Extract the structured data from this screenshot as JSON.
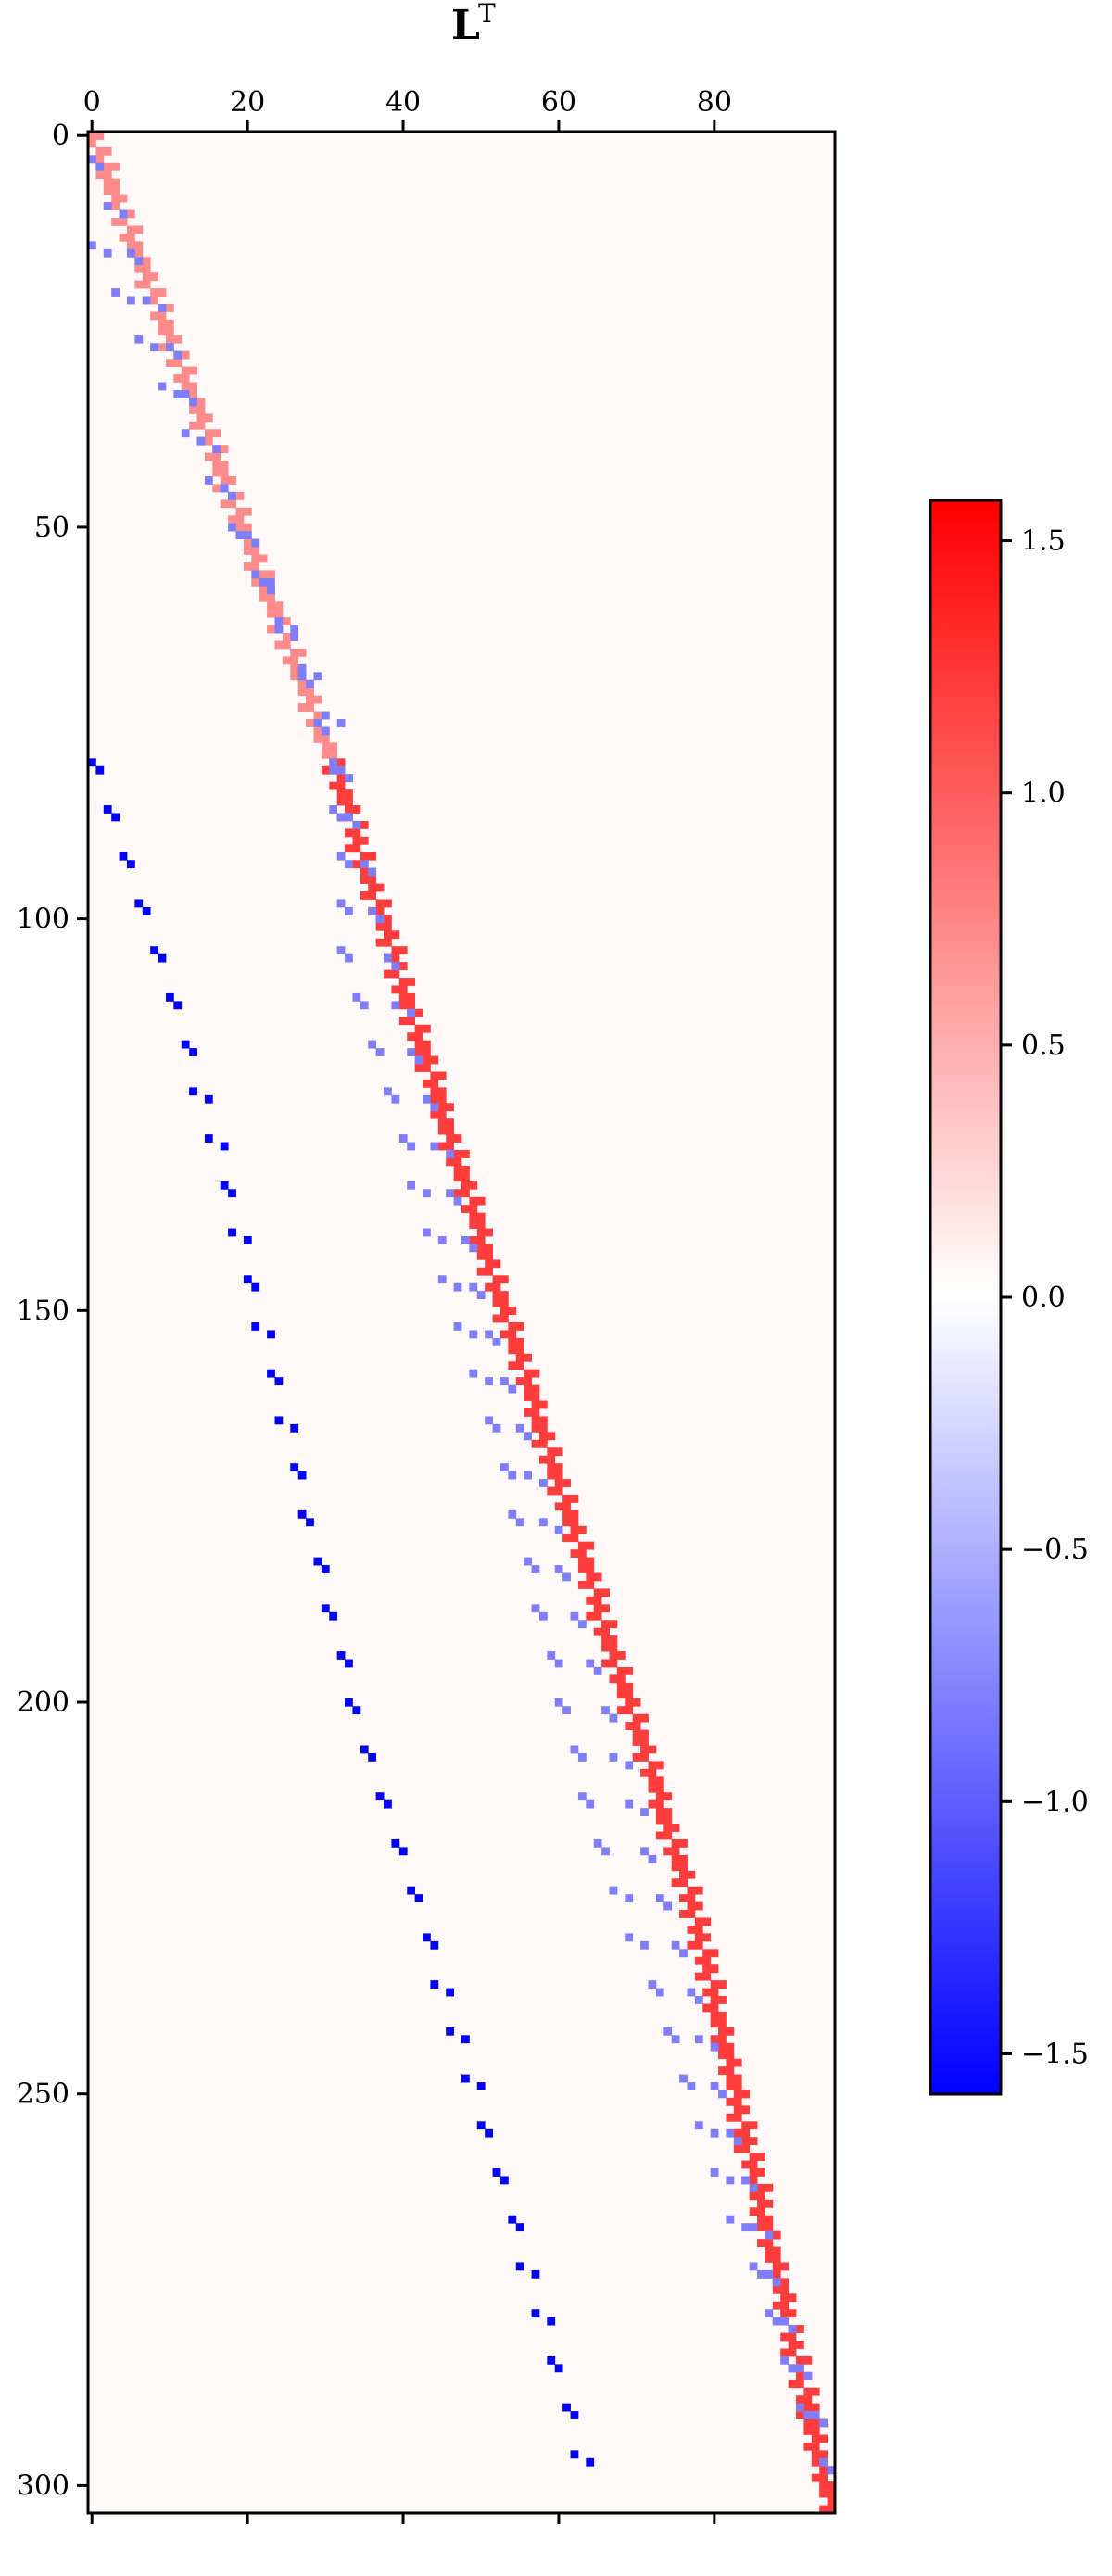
{
  "chart_data": {
    "type": "heatmap",
    "title": "L",
    "title_superscript": "T",
    "xlabel": "",
    "ylabel": "",
    "shape": {
      "rows": 304,
      "cols": 96
    },
    "xlim": [
      -0.5,
      95.5
    ],
    "ylim": [
      303.5,
      -0.5
    ],
    "x_axis_position": "top",
    "x_ticks": [
      0,
      20,
      40,
      60,
      80
    ],
    "x_tick_labels": [
      "0",
      "20",
      "40",
      "60",
      "80"
    ],
    "y_ticks": [
      0,
      50,
      100,
      150,
      200,
      250,
      300
    ],
    "y_tick_labels": [
      "0",
      "50",
      "100",
      "150",
      "200",
      "250",
      "300"
    ],
    "grid": false,
    "colormap": "bwr",
    "color_min": "#0000ff",
    "color_mid": "#ffffff",
    "color_max": "#ff0000",
    "background_value": 0.04,
    "vmin": -1.58,
    "vmax": 1.58,
    "colorbar": {
      "placement": "right",
      "ticks": [
        -1.5,
        -1.0,
        -0.5,
        0.0,
        0.5,
        1.0,
        1.5
      ],
      "tick_labels": [
        "−1.5",
        "−1.0",
        "−0.5",
        "0.0",
        "0.5",
        "1.0",
        "1.5"
      ]
    },
    "bands": [
      {
        "name": "main diagonal",
        "points": [
          [
            0,
            0
          ],
          [
            80,
            31
          ],
          [
            150,
            53
          ],
          [
            225,
            77
          ],
          [
            303,
            95
          ]
        ],
        "values": [
          [
            0,
            0.72
          ],
          [
            79,
            0.72
          ],
          [
            80,
            1.2
          ],
          [
            303,
            1.2
          ]
        ],
        "pattern": "stair"
      },
      {
        "name": "sub-diagonal",
        "points": [
          [
            3,
            0
          ],
          [
            80,
            31
          ],
          [
            150,
            50
          ],
          [
            225,
            73
          ],
          [
            300,
            95
          ]
        ],
        "values": [
          [
            0,
            -0.8
          ],
          [
            303,
            -0.8
          ]
        ],
        "pattern": "pair",
        "period": 6
      },
      {
        "name": "near sub-diagonal",
        "points": [
          [
            14,
            0
          ],
          [
            75,
            31
          ],
          [
            105,
            32
          ],
          [
            160,
            50
          ],
          [
            215,
            64
          ],
          [
            295,
            93
          ]
        ],
        "values": [
          [
            0,
            -0.8
          ],
          [
            303,
            -0.8
          ]
        ],
        "pattern": "pair",
        "period": 6
      },
      {
        "name": "far sub-diagonal",
        "points": [
          [
            80,
            0
          ],
          [
            130,
            16
          ],
          [
            200,
            33
          ],
          [
            260,
            52
          ],
          [
            298,
            63
          ]
        ],
        "values": [
          [
            0,
            -1.58
          ],
          [
            303,
            -1.58
          ]
        ],
        "pattern": "pair",
        "period": 6
      }
    ]
  }
}
